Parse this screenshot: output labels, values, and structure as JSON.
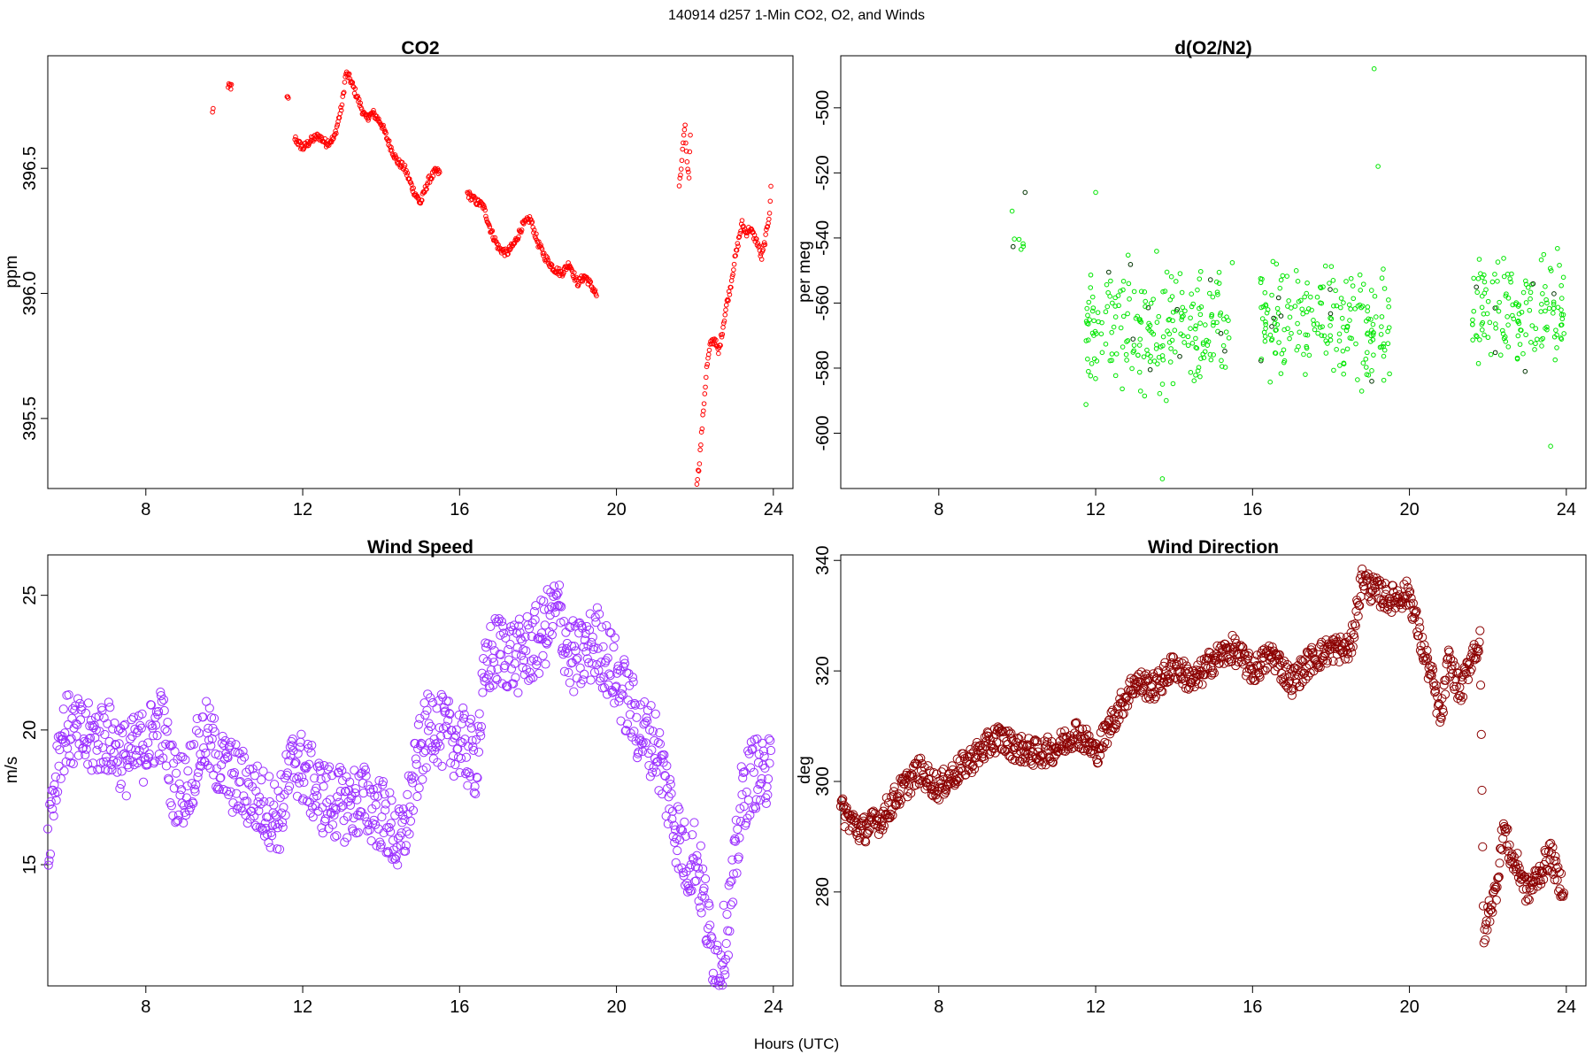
{
  "figure": {
    "suptitle": "140914   d257   1-Min CO2, O2, and Winds",
    "xlabel": "Hours (UTC)"
  },
  "chart_data": [
    {
      "type": "scatter",
      "title": "CO2",
      "ylabel": "ppm",
      "xlabel": "",
      "xlim": [
        5.5,
        24.5
      ],
      "ylim": [
        395.22,
        396.95
      ],
      "xticks": [
        8,
        12,
        16,
        20,
        24
      ],
      "yticks": [
        395.5,
        396.0,
        396.5
      ],
      "ytick_labels": [
        "395.5",
        "396.0",
        "396.5"
      ],
      "grid": false,
      "color": "#ff0000",
      "series": [
        {
          "segments": [
            {
              "x": [
                9.7,
                9.72
              ],
              "y": [
                396.72,
                396.75
              ]
            },
            {
              "x": [
                10.1,
                10.15,
                10.2
              ],
              "y": [
                396.82,
                396.83,
                396.82
              ]
            },
            {
              "x": [
                11.6,
                11.65
              ],
              "y": [
                396.78,
                396.77
              ]
            },
            {
              "x": [
                11.8,
                12.0,
                12.2,
                12.4,
                12.6,
                12.8,
                13.0,
                13.1,
                13.2,
                13.4,
                13.6,
                13.8,
                14.0,
                14.2,
                14.4,
                14.6,
                14.8,
                15.0,
                15.2,
                15.4,
                15.5
              ],
              "y": [
                396.62,
                396.58,
                396.61,
                396.63,
                396.6,
                396.62,
                396.75,
                396.88,
                396.86,
                396.78,
                396.7,
                396.72,
                396.68,
                396.6,
                396.53,
                396.5,
                396.42,
                396.36,
                396.45,
                396.49,
                396.48
              ]
            },
            {
              "x": [
                16.2,
                16.4,
                16.6,
                16.8,
                17.0,
                17.2,
                17.4,
                17.6,
                17.8,
                18.0,
                18.2,
                18.4,
                18.6,
                18.8,
                19.0,
                19.2,
                19.4,
                19.5
              ],
              "y": [
                396.4,
                396.37,
                396.35,
                396.25,
                396.18,
                396.16,
                396.2,
                396.27,
                396.3,
                396.2,
                396.14,
                396.1,
                396.08,
                396.12,
                396.04,
                396.07,
                396.02,
                395.99
              ]
            },
            {
              "x": [
                21.6,
                21.65,
                21.7,
                21.75,
                21.8,
                21.85,
                21.9
              ],
              "y": [
                396.42,
                396.5,
                396.6,
                396.66,
                396.52,
                396.47,
                396.72
              ]
            },
            {
              "x": [
                22.05,
                22.1,
                22.15,
                22.2,
                22.3,
                22.4,
                22.5,
                22.6,
                22.7,
                22.8,
                22.9,
                23.0,
                23.1,
                23.2,
                23.3,
                23.4,
                23.5,
                23.6,
                23.7,
                23.8,
                23.9,
                23.95
              ],
              "y": [
                395.25,
                395.3,
                395.4,
                395.5,
                395.7,
                395.8,
                395.82,
                395.76,
                395.85,
                395.95,
                396.02,
                396.12,
                396.2,
                396.28,
                396.24,
                396.26,
                396.23,
                396.2,
                396.14,
                396.22,
                396.32,
                396.45
              ]
            }
          ]
        }
      ]
    },
    {
      "type": "scatter",
      "title": "d(O2/N2)",
      "ylabel": "per meg",
      "xlabel": "",
      "xlim": [
        5.5,
        24.5
      ],
      "ylim": [
        -617,
        -484
      ],
      "xticks": [
        8,
        12,
        16,
        20,
        24
      ],
      "yticks": [
        -600,
        -580,
        -560,
        -540,
        -520,
        -500
      ],
      "ytick_labels": [
        "-600",
        "-580",
        "-560",
        "-540",
        "-520",
        "-500"
      ],
      "grid": false,
      "color": "#00e600",
      "accent_color": "#003300",
      "series": [
        {
          "clusters": [
            {
              "x_range": [
                9.7,
                10.25
              ],
              "center": -540,
              "spread": 14,
              "points_per_hour": 12
            },
            {
              "x_range": [
                11.75,
                15.5
              ],
              "center": -568,
              "spread": 26,
              "points_per_hour": 60
            },
            {
              "x_range": [
                16.2,
                19.5
              ],
              "center": -566,
              "spread": 26,
              "points_per_hour": 60
            },
            {
              "x_range": [
                21.6,
                23.95
              ],
              "center": -565,
              "spread": 26,
              "points_per_hour": 60
            }
          ],
          "outliers": [
            {
              "x": 19.1,
              "y": -488
            },
            {
              "x": 19.2,
              "y": -518
            },
            {
              "x": 13.7,
              "y": -614
            },
            {
              "x": 23.6,
              "y": -604
            },
            {
              "x": 10.2,
              "y": -526
            },
            {
              "x": 12.0,
              "y": -526
            }
          ]
        }
      ]
    },
    {
      "type": "scatter",
      "title": "Wind Speed",
      "ylabel": "m/s",
      "xlabel": "",
      "xlim": [
        5.5,
        24.5
      ],
      "ylim": [
        10.5,
        26.5
      ],
      "xticks": [
        8,
        12,
        16,
        20,
        24
      ],
      "yticks": [
        15,
        20,
        25
      ],
      "ytick_labels": [
        "15",
        "20",
        "25"
      ],
      "grid": false,
      "color": "#9b30ff",
      "series": [
        {
          "x": [
            5.5,
            5.8,
            6.0,
            6.5,
            7.0,
            7.5,
            8.0,
            8.4,
            8.7,
            9.0,
            9.5,
            10.0,
            10.5,
            11.0,
            11.4,
            11.8,
            12.0,
            12.5,
            13.0,
            13.5,
            14.0,
            14.3,
            14.5,
            14.8,
            15.0,
            15.3,
            15.6,
            16.0,
            16.4,
            16.7,
            17.0,
            17.5,
            18.0,
            18.5,
            18.8,
            19.0,
            19.5,
            20.0,
            20.3,
            20.6,
            21.0,
            21.5,
            21.8,
            22.0,
            22.2,
            22.4,
            22.6,
            22.8,
            23.0,
            23.2,
            23.5,
            23.8,
            23.95
          ],
          "y": [
            16.0,
            19.5,
            20.0,
            19.6,
            19.8,
            18.9,
            19.5,
            20.3,
            18.0,
            17.8,
            19.8,
            18.5,
            17.9,
            17.2,
            16.8,
            19.0,
            18.5,
            17.5,
            17.2,
            17.4,
            16.9,
            16.2,
            15.6,
            17.8,
            19.2,
            20.4,
            19.8,
            19.6,
            18.8,
            22.5,
            23.0,
            22.7,
            23.3,
            24.5,
            22.8,
            22.6,
            23.3,
            22.0,
            21.0,
            20.0,
            19.5,
            16.5,
            15.0,
            15.5,
            14.0,
            12.0,
            11.3,
            12.5,
            14.5,
            17.5,
            18.5,
            18.0,
            20.5
          ]
        }
      ]
    },
    {
      "type": "scatter",
      "title": "Wind Direction",
      "ylabel": "deg",
      "xlabel": "",
      "xlim": [
        5.5,
        24.5
      ],
      "ylim": [
        263,
        341
      ],
      "xticks": [
        8,
        12,
        16,
        20,
        24
      ],
      "yticks": [
        280,
        300,
        320,
        340
      ],
      "ytick_labels": [
        "280",
        "300",
        "320",
        "340"
      ],
      "grid": false,
      "color": "#8b0000",
      "series": [
        {
          "x": [
            5.5,
            6.0,
            6.5,
            7.0,
            7.5,
            7.8,
            8.0,
            8.5,
            9.0,
            9.5,
            10.0,
            10.5,
            11.0,
            11.5,
            11.8,
            12.0,
            12.5,
            13.0,
            13.5,
            14.0,
            14.5,
            15.0,
            15.5,
            16.0,
            16.5,
            17.0,
            17.5,
            18.0,
            18.5,
            18.8,
            19.0,
            19.5,
            20.0,
            20.3,
            20.6,
            20.8,
            21.0,
            21.3,
            21.6,
            21.8,
            21.9,
            22.0,
            22.2,
            22.4,
            22.6,
            22.8,
            23.0,
            23.3,
            23.6,
            23.8,
            23.95
          ],
          "y": [
            295,
            291,
            293,
            298,
            302,
            300,
            299,
            302,
            305,
            308,
            306,
            305,
            306,
            309,
            307,
            305,
            312,
            318,
            317,
            321,
            318,
            322,
            324,
            320,
            323,
            318,
            322,
            324,
            324,
            337,
            335,
            333,
            334,
            325,
            318,
            311,
            322,
            316,
            323,
            325,
            270,
            276,
            280,
            292,
            286,
            284,
            280,
            283,
            287,
            282,
            281
          ]
        }
      ]
    }
  ]
}
